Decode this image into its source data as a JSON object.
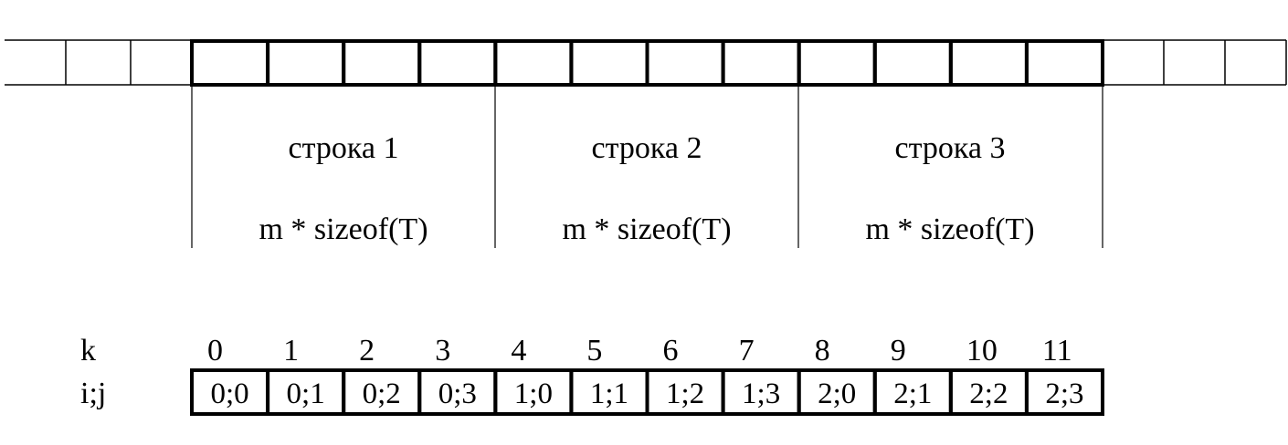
{
  "rows": [
    {
      "label": "строка 1",
      "size": "m * sizeof(T)"
    },
    {
      "label": "строка 2",
      "size": "m * sizeof(T)"
    },
    {
      "label": "строка 3",
      "size": "m * sizeof(T)"
    }
  ],
  "index_table": {
    "k_label": "k",
    "ij_label": "i;j",
    "k_values": [
      "0",
      "1",
      "2",
      "3",
      "4",
      "5",
      "6",
      "7",
      "8",
      "9",
      "10",
      "11"
    ],
    "ij_values": [
      "0;0",
      "0;1",
      "0;2",
      "0;3",
      "1;0",
      "1;1",
      "1;2",
      "1;3",
      "2;0",
      "2;1",
      "2;2",
      "2;3"
    ]
  }
}
